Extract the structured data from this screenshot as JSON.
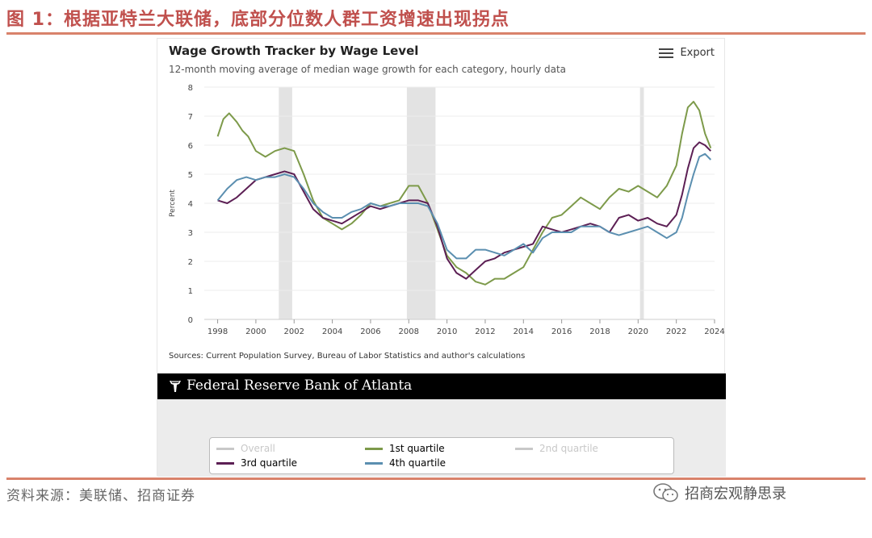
{
  "figure_title": "图 1：根据亚特兰大联储，底部分位数人群工资增速出现拐点",
  "chart": {
    "title": "Wage Growth Tracker by Wage Level",
    "subtitle": "12-month moving average of median wage growth for each category, hourly data",
    "export_label": "Export",
    "sources": "Sources: Current Population Survey, Bureau of Labor Statistics and author's calculations",
    "brand": "Federal Reserve Bank of Atlanta"
  },
  "legend": [
    {
      "label": "Overall",
      "color": "#c8c8c8",
      "enabled": false
    },
    {
      "label": "1st quartile",
      "color": "#7d9a4a",
      "enabled": true
    },
    {
      "label": "2nd quartile",
      "color": "#c8c8c8",
      "enabled": false
    },
    {
      "label": "3rd quartile",
      "color": "#5c1f54",
      "enabled": true
    },
    {
      "label": "4th quartile",
      "color": "#5b8fb0",
      "enabled": true
    }
  ],
  "chart_data": {
    "type": "line",
    "title": "Wage Growth Tracker by Wage Level",
    "ylabel": "Percent",
    "xlabel": "",
    "xlim": [
      1997.3,
      2024.0
    ],
    "ylim": [
      0,
      8
    ],
    "x_ticks": [
      1998,
      2000,
      2002,
      2004,
      2006,
      2008,
      2010,
      2012,
      2014,
      2016,
      2018,
      2020,
      2022,
      2024
    ],
    "y_ticks": [
      0,
      1,
      2,
      3,
      4,
      5,
      6,
      7,
      8
    ],
    "recessions": [
      [
        2001.2,
        2001.9
      ],
      [
        2007.9,
        2009.4
      ],
      [
        2020.1,
        2020.3
      ]
    ],
    "series": [
      {
        "name": "1st quartile",
        "color": "#7d9a4a",
        "x": [
          1998.0,
          1998.3,
          1998.6,
          1999.0,
          1999.3,
          1999.6,
          2000.0,
          2000.5,
          2001.0,
          2001.5,
          2002.0,
          2002.5,
          2003.0,
          2003.5,
          2004.0,
          2004.5,
          2005.0,
          2005.5,
          2006.0,
          2006.5,
          2007.0,
          2007.5,
          2008.0,
          2008.5,
          2009.0,
          2009.5,
          2010.0,
          2010.5,
          2011.0,
          2011.5,
          2012.0,
          2012.5,
          2013.0,
          2013.5,
          2014.0,
          2014.5,
          2015.0,
          2015.5,
          2016.0,
          2016.5,
          2017.0,
          2017.5,
          2018.0,
          2018.5,
          2019.0,
          2019.5,
          2020.0,
          2020.5,
          2021.0,
          2021.5,
          2022.0,
          2022.3,
          2022.6,
          2022.9,
          2023.2,
          2023.5,
          2023.8
        ],
        "y": [
          6.3,
          6.9,
          7.1,
          6.8,
          6.5,
          6.3,
          5.8,
          5.6,
          5.8,
          5.9,
          5.8,
          5.0,
          4.1,
          3.5,
          3.3,
          3.1,
          3.3,
          3.6,
          4.0,
          3.9,
          4.0,
          4.1,
          4.6,
          4.6,
          4.0,
          3.1,
          2.2,
          1.8,
          1.6,
          1.3,
          1.2,
          1.4,
          1.4,
          1.6,
          1.8,
          2.4,
          3.0,
          3.5,
          3.6,
          3.9,
          4.2,
          4.0,
          3.8,
          4.2,
          4.5,
          4.4,
          4.6,
          4.4,
          4.2,
          4.6,
          5.3,
          6.4,
          7.3,
          7.5,
          7.2,
          6.4,
          5.9
        ]
      },
      {
        "name": "3rd quartile",
        "color": "#5c1f54",
        "x": [
          1998.0,
          1998.5,
          1999.0,
          1999.5,
          2000.0,
          2000.5,
          2001.0,
          2001.5,
          2002.0,
          2002.5,
          2003.0,
          2003.5,
          2004.0,
          2004.5,
          2005.0,
          2005.5,
          2006.0,
          2006.5,
          2007.0,
          2007.5,
          2008.0,
          2008.5,
          2009.0,
          2009.5,
          2010.0,
          2010.5,
          2011.0,
          2011.5,
          2012.0,
          2012.5,
          2013.0,
          2013.5,
          2014.0,
          2014.5,
          2015.0,
          2015.5,
          2016.0,
          2016.5,
          2017.0,
          2017.5,
          2018.0,
          2018.5,
          2019.0,
          2019.5,
          2020.0,
          2020.5,
          2021.0,
          2021.5,
          2022.0,
          2022.3,
          2022.6,
          2022.9,
          2023.2,
          2023.5,
          2023.8
        ],
        "y": [
          4.1,
          4.0,
          4.2,
          4.5,
          4.8,
          4.9,
          5.0,
          5.1,
          5.0,
          4.4,
          3.8,
          3.5,
          3.4,
          3.3,
          3.5,
          3.7,
          3.9,
          3.8,
          3.9,
          4.0,
          4.1,
          4.1,
          4.0,
          3.2,
          2.1,
          1.6,
          1.4,
          1.7,
          2.0,
          2.1,
          2.3,
          2.4,
          2.5,
          2.6,
          3.2,
          3.1,
          3.0,
          3.1,
          3.2,
          3.3,
          3.2,
          3.0,
          3.5,
          3.6,
          3.4,
          3.5,
          3.3,
          3.2,
          3.6,
          4.3,
          5.2,
          5.9,
          6.1,
          6.0,
          5.8
        ]
      },
      {
        "name": "4th quartile",
        "color": "#5b8fb0",
        "x": [
          1998.0,
          1998.5,
          1999.0,
          1999.5,
          2000.0,
          2000.5,
          2001.0,
          2001.5,
          2002.0,
          2002.5,
          2003.0,
          2003.5,
          2004.0,
          2004.5,
          2005.0,
          2005.5,
          2006.0,
          2006.5,
          2007.0,
          2007.5,
          2008.0,
          2008.5,
          2009.0,
          2009.5,
          2010.0,
          2010.5,
          2011.0,
          2011.5,
          2012.0,
          2012.5,
          2013.0,
          2013.5,
          2014.0,
          2014.5,
          2015.0,
          2015.5,
          2016.0,
          2016.5,
          2017.0,
          2017.5,
          2018.0,
          2018.5,
          2019.0,
          2019.5,
          2020.0,
          2020.5,
          2021.0,
          2021.5,
          2022.0,
          2022.3,
          2022.6,
          2022.9,
          2023.2,
          2023.5,
          2023.8
        ],
        "y": [
          4.1,
          4.5,
          4.8,
          4.9,
          4.8,
          4.9,
          4.9,
          5.0,
          4.9,
          4.5,
          4.0,
          3.7,
          3.5,
          3.5,
          3.7,
          3.8,
          4.0,
          3.9,
          3.9,
          4.0,
          4.0,
          4.0,
          3.9,
          3.3,
          2.4,
          2.1,
          2.1,
          2.4,
          2.4,
          2.3,
          2.2,
          2.4,
          2.6,
          2.3,
          2.8,
          3.0,
          3.0,
          3.0,
          3.2,
          3.2,
          3.2,
          3.0,
          2.9,
          3.0,
          3.1,
          3.2,
          3.0,
          2.8,
          3.0,
          3.5,
          4.3,
          5.0,
          5.6,
          5.7,
          5.5
        ]
      }
    ]
  },
  "footer": {
    "source_text": "资料来源：美联储、招商证券",
    "wechat_label": "招商宏观静思录"
  }
}
